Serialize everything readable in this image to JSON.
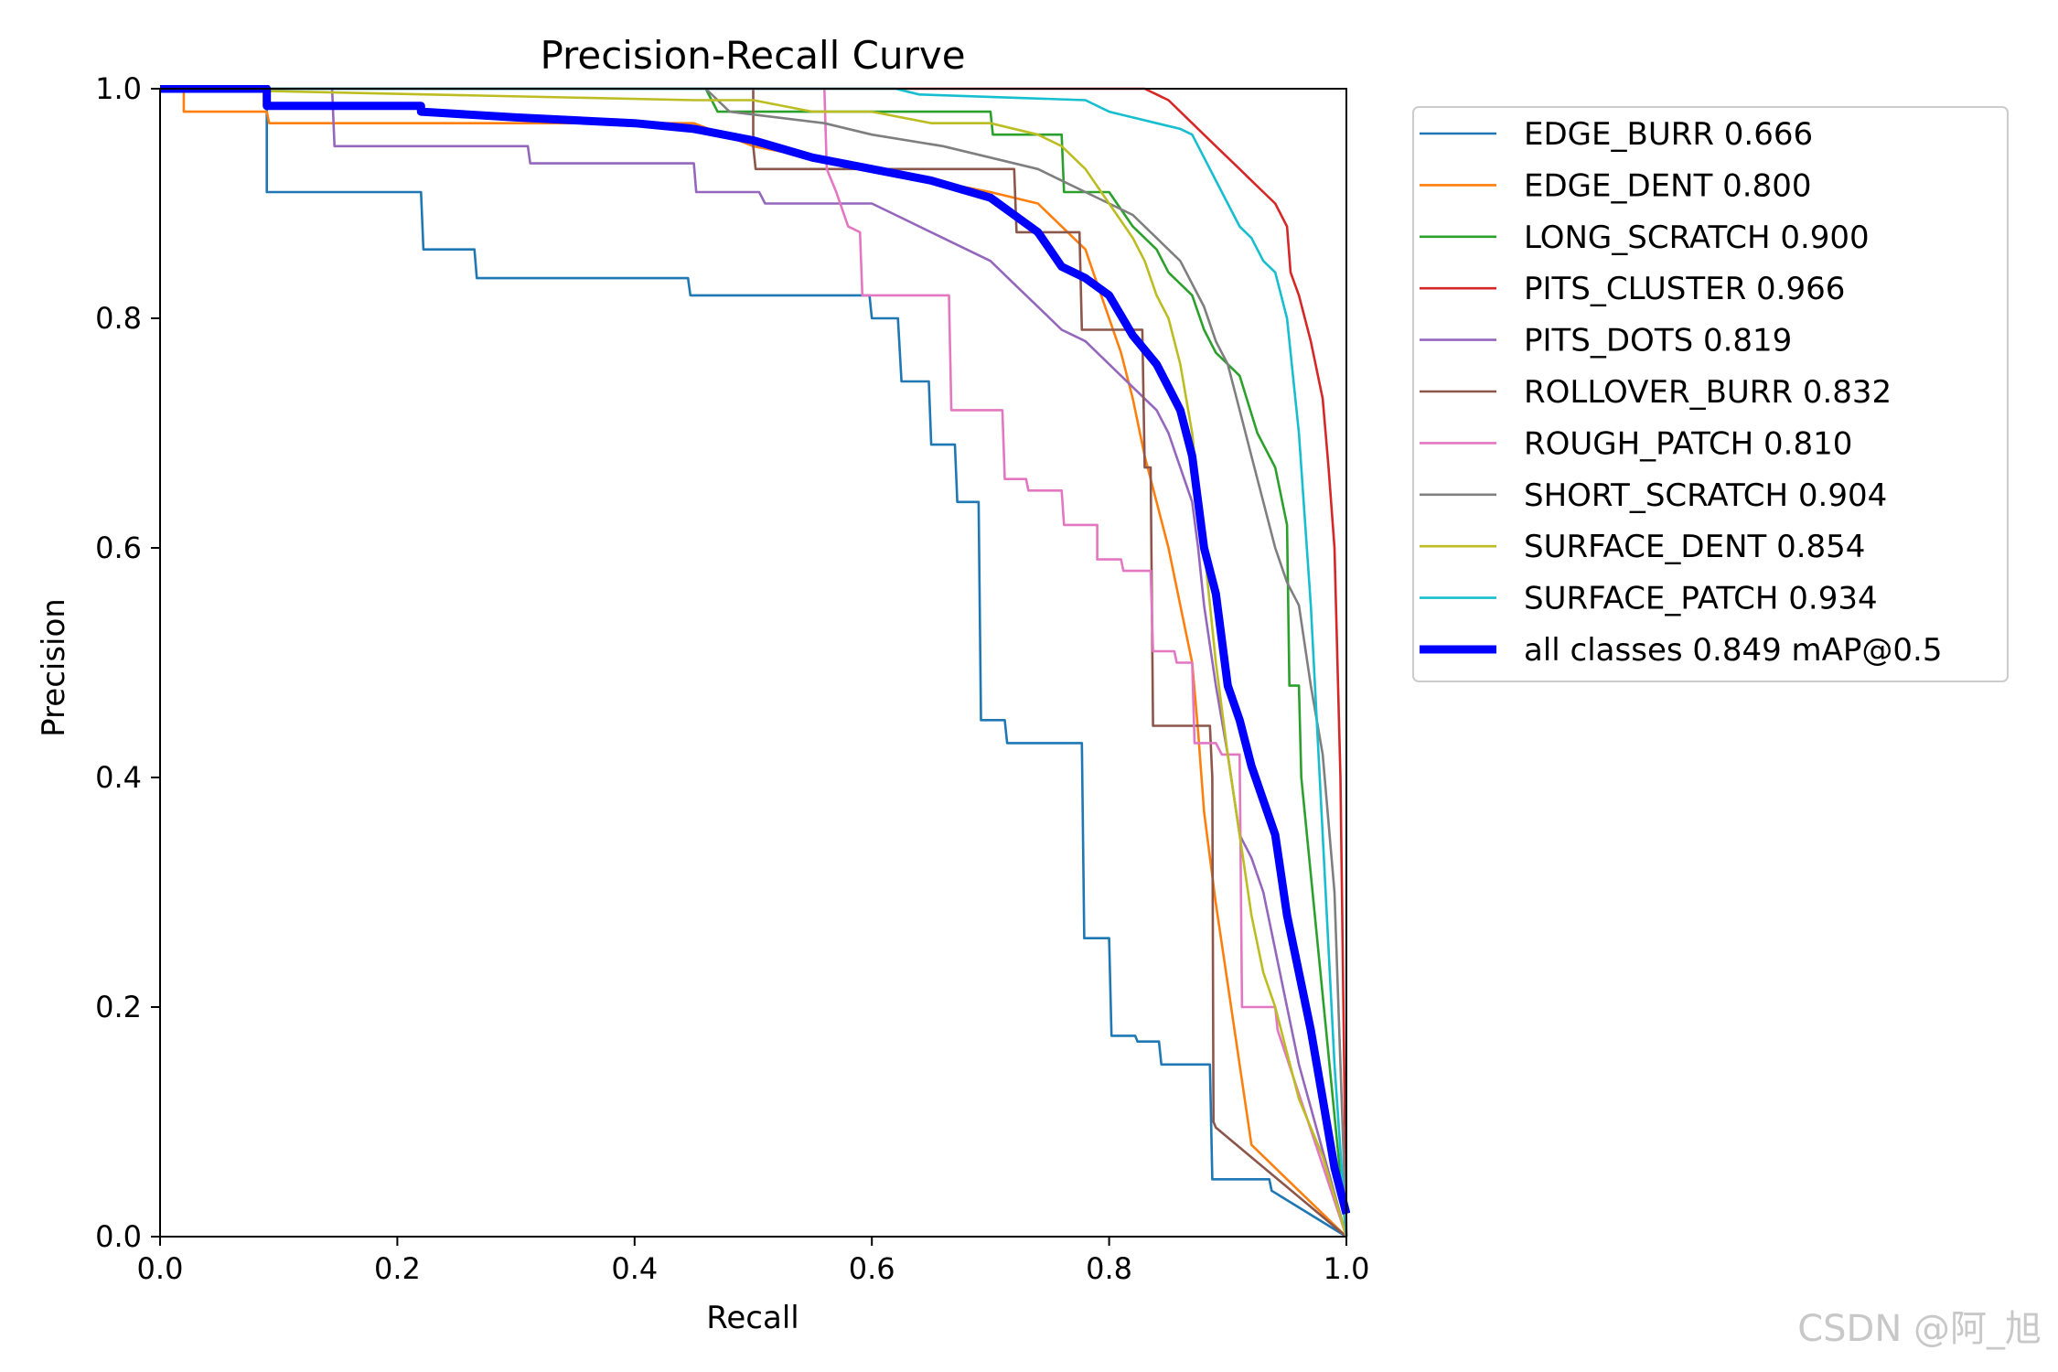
{
  "watermark": "CSDN @阿_旭",
  "chart_data": {
    "type": "line",
    "title": "Precision-Recall Curve",
    "xlabel": "Recall",
    "ylabel": "Precision",
    "xlim": [
      0,
      1
    ],
    "ylim": [
      0,
      1
    ],
    "xticks": [
      "0.0",
      "0.2",
      "0.4",
      "0.6",
      "0.8",
      "1.0"
    ],
    "yticks": [
      "0.0",
      "0.2",
      "0.4",
      "0.6",
      "0.8",
      "1.0"
    ],
    "legend_position": "outside-right",
    "series": [
      {
        "name": "EDGE_BURR 0.666",
        "color": "#1f77b4",
        "x": [
          0,
          0.09,
          0.09,
          0.22,
          0.222,
          0.265,
          0.267,
          0.445,
          0.447,
          0.598,
          0.6,
          0.622,
          0.625,
          0.648,
          0.65,
          0.67,
          0.672,
          0.69,
          0.692,
          0.712,
          0.714,
          0.777,
          0.779,
          0.8,
          0.802,
          0.822,
          0.824,
          0.842,
          0.844,
          0.885,
          0.887,
          0.935,
          0.937,
          1.0
        ],
        "y": [
          1.0,
          1.0,
          0.91,
          0.91,
          0.86,
          0.86,
          0.835,
          0.835,
          0.82,
          0.82,
          0.8,
          0.8,
          0.745,
          0.745,
          0.69,
          0.69,
          0.64,
          0.64,
          0.45,
          0.45,
          0.43,
          0.43,
          0.26,
          0.26,
          0.175,
          0.175,
          0.17,
          0.17,
          0.15,
          0.15,
          0.05,
          0.05,
          0.04,
          0.0
        ]
      },
      {
        "name": "EDGE_DENT 0.800",
        "color": "#ff7f0e",
        "x": [
          0,
          0.02,
          0.02,
          0.09,
          0.092,
          0.45,
          0.5,
          0.55,
          0.6,
          0.65,
          0.7,
          0.74,
          0.76,
          0.78,
          0.79,
          0.8,
          0.81,
          0.82,
          0.83,
          0.84,
          0.85,
          0.86,
          0.87,
          0.875,
          0.88,
          0.89,
          0.9,
          0.92,
          0.95,
          1.0
        ],
        "y": [
          1.0,
          1.0,
          0.98,
          0.98,
          0.97,
          0.97,
          0.95,
          0.94,
          0.93,
          0.92,
          0.91,
          0.9,
          0.88,
          0.86,
          0.83,
          0.8,
          0.77,
          0.73,
          0.68,
          0.64,
          0.6,
          0.55,
          0.5,
          0.44,
          0.37,
          0.29,
          0.22,
          0.08,
          0.05,
          0.0
        ]
      },
      {
        "name": "LONG_SCRATCH 0.900",
        "color": "#2ca02c",
        "x": [
          0,
          0.46,
          0.47,
          0.7,
          0.702,
          0.76,
          0.762,
          0.8,
          0.82,
          0.84,
          0.85,
          0.87,
          0.88,
          0.89,
          0.91,
          0.925,
          0.94,
          0.95,
          0.952,
          0.96,
          0.962,
          1.0
        ],
        "y": [
          1.0,
          1.0,
          0.98,
          0.98,
          0.96,
          0.96,
          0.91,
          0.91,
          0.88,
          0.86,
          0.84,
          0.82,
          0.79,
          0.77,
          0.75,
          0.7,
          0.67,
          0.62,
          0.48,
          0.48,
          0.4,
          0.0
        ]
      },
      {
        "name": "PITS_CLUSTER 0.966",
        "color": "#d62728",
        "x": [
          0,
          0.83,
          0.85,
          0.87,
          0.89,
          0.9,
          0.91,
          0.92,
          0.93,
          0.94,
          0.95,
          0.953,
          0.96,
          0.97,
          0.98,
          0.985,
          0.99,
          0.995,
          1.0
        ],
        "y": [
          1.0,
          1.0,
          0.99,
          0.97,
          0.95,
          0.94,
          0.93,
          0.92,
          0.91,
          0.9,
          0.88,
          0.84,
          0.82,
          0.78,
          0.73,
          0.67,
          0.6,
          0.4,
          0.0
        ]
      },
      {
        "name": "PITS_DOTS 0.819",
        "color": "#9467bd",
        "x": [
          0,
          0.145,
          0.147,
          0.31,
          0.312,
          0.45,
          0.452,
          0.505,
          0.51,
          0.6,
          0.62,
          0.66,
          0.7,
          0.72,
          0.74,
          0.76,
          0.78,
          0.8,
          0.82,
          0.84,
          0.85,
          0.86,
          0.87,
          0.875,
          0.88,
          0.89,
          0.9,
          0.91,
          0.92,
          0.93,
          0.94,
          0.95,
          0.96,
          1.0
        ],
        "y": [
          1.0,
          1.0,
          0.95,
          0.95,
          0.935,
          0.935,
          0.91,
          0.91,
          0.9,
          0.9,
          0.89,
          0.87,
          0.85,
          0.83,
          0.81,
          0.79,
          0.78,
          0.76,
          0.74,
          0.72,
          0.7,
          0.67,
          0.64,
          0.6,
          0.55,
          0.48,
          0.42,
          0.35,
          0.33,
          0.3,
          0.25,
          0.2,
          0.15,
          0.0
        ]
      },
      {
        "name": "ROLLOVER_BURR 0.832",
        "color": "#8c564b",
        "x": [
          0,
          0.5,
          0.5,
          0.502,
          0.72,
          0.722,
          0.775,
          0.777,
          0.828,
          0.83,
          0.835,
          0.837,
          0.885,
          0.887,
          0.888,
          0.89,
          1.0
        ],
        "y": [
          1.0,
          1.0,
          0.95,
          0.93,
          0.93,
          0.875,
          0.875,
          0.79,
          0.79,
          0.67,
          0.67,
          0.445,
          0.445,
          0.4,
          0.1,
          0.095,
          0.0
        ]
      },
      {
        "name": "ROUGH_PATCH 0.810",
        "color": "#e377c2",
        "x": [
          0,
          0.56,
          0.562,
          0.57,
          0.58,
          0.59,
          0.592,
          0.665,
          0.667,
          0.71,
          0.712,
          0.73,
          0.732,
          0.76,
          0.762,
          0.79,
          0.79,
          0.81,
          0.812,
          0.835,
          0.837,
          0.855,
          0.857,
          0.87,
          0.872,
          0.89,
          0.895,
          0.91,
          0.912,
          0.94,
          0.942,
          1.0
        ],
        "y": [
          1.0,
          1.0,
          0.93,
          0.91,
          0.88,
          0.875,
          0.82,
          0.82,
          0.72,
          0.72,
          0.66,
          0.66,
          0.65,
          0.65,
          0.62,
          0.62,
          0.59,
          0.59,
          0.58,
          0.58,
          0.51,
          0.51,
          0.5,
          0.5,
          0.43,
          0.43,
          0.42,
          0.42,
          0.2,
          0.2,
          0.18,
          0.0
        ]
      },
      {
        "name": "SHORT_SCRATCH 0.904",
        "color": "#7f7f7f",
        "x": [
          0,
          0.46,
          0.48,
          0.56,
          0.6,
          0.66,
          0.7,
          0.74,
          0.76,
          0.78,
          0.8,
          0.82,
          0.84,
          0.86,
          0.87,
          0.88,
          0.89,
          0.9,
          0.91,
          0.92,
          0.93,
          0.94,
          0.95,
          0.96,
          0.97,
          0.98,
          0.99,
          1.0
        ],
        "y": [
          1.0,
          1.0,
          0.98,
          0.97,
          0.96,
          0.95,
          0.94,
          0.93,
          0.92,
          0.91,
          0.9,
          0.89,
          0.87,
          0.85,
          0.83,
          0.81,
          0.78,
          0.76,
          0.72,
          0.68,
          0.64,
          0.6,
          0.57,
          0.55,
          0.48,
          0.42,
          0.3,
          0.0
        ]
      },
      {
        "name": "SURFACE_DENT 0.854",
        "color": "#bcbd22",
        "x": [
          0,
          0.45,
          0.5,
          0.55,
          0.6,
          0.65,
          0.7,
          0.74,
          0.76,
          0.78,
          0.8,
          0.82,
          0.83,
          0.84,
          0.85,
          0.86,
          0.87,
          0.88,
          0.89,
          0.9,
          0.91,
          0.92,
          0.93,
          0.94,
          0.95,
          0.96,
          0.98,
          1.0
        ],
        "y": [
          1.0,
          0.99,
          0.99,
          0.98,
          0.98,
          0.97,
          0.97,
          0.96,
          0.95,
          0.93,
          0.9,
          0.87,
          0.85,
          0.82,
          0.8,
          0.76,
          0.7,
          0.6,
          0.5,
          0.42,
          0.35,
          0.28,
          0.23,
          0.2,
          0.16,
          0.12,
          0.07,
          0.0
        ]
      },
      {
        "name": "SURFACE_PATCH 0.934",
        "color": "#17becf",
        "x": [
          0,
          0.62,
          0.64,
          0.78,
          0.8,
          0.82,
          0.84,
          0.86,
          0.87,
          0.88,
          0.89,
          0.9,
          0.91,
          0.92,
          0.93,
          0.94,
          0.95,
          0.96,
          0.97,
          0.98,
          0.99,
          1.0
        ],
        "y": [
          1.0,
          1.0,
          0.995,
          0.99,
          0.98,
          0.975,
          0.97,
          0.965,
          0.96,
          0.94,
          0.92,
          0.9,
          0.88,
          0.87,
          0.85,
          0.84,
          0.8,
          0.7,
          0.55,
          0.35,
          0.15,
          0.0
        ]
      },
      {
        "name": "all classes 0.849 mAP@0.5",
        "color": "#0000ff",
        "bold": true,
        "x": [
          0,
          0.09,
          0.09,
          0.22,
          0.22,
          0.3,
          0.4,
          0.45,
          0.5,
          0.55,
          0.6,
          0.65,
          0.7,
          0.72,
          0.74,
          0.75,
          0.76,
          0.78,
          0.8,
          0.82,
          0.84,
          0.85,
          0.86,
          0.87,
          0.875,
          0.88,
          0.89,
          0.9,
          0.91,
          0.92,
          0.94,
          0.95,
          0.96,
          0.97,
          0.98,
          0.99,
          1.0
        ],
        "y": [
          1.0,
          1.0,
          0.985,
          0.985,
          0.98,
          0.975,
          0.97,
          0.965,
          0.955,
          0.94,
          0.93,
          0.92,
          0.905,
          0.89,
          0.875,
          0.86,
          0.845,
          0.835,
          0.82,
          0.785,
          0.76,
          0.74,
          0.72,
          0.68,
          0.64,
          0.6,
          0.56,
          0.48,
          0.45,
          0.41,
          0.35,
          0.28,
          0.23,
          0.18,
          0.12,
          0.06,
          0.02
        ]
      }
    ]
  }
}
